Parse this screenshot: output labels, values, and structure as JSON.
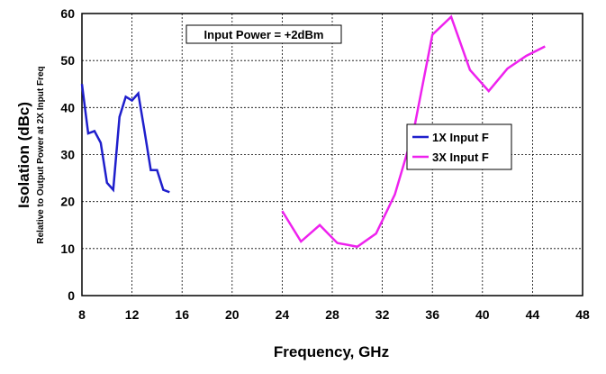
{
  "chart_data": {
    "type": "line",
    "x_label": "Frequency, GHz",
    "y_label": "Isolation (dBc)",
    "y_sublabel": "Relative to Output Power at 2X Input Freq",
    "annotation": "Input Power = +2dBm",
    "series": [
      {
        "name": "1X Input F",
        "color": "#1f1fcc",
        "x": [
          8,
          8.5,
          9,
          9.5,
          10,
          10.5,
          11,
          11.5,
          12,
          12.5,
          13,
          13.5,
          14,
          14.5,
          15
        ],
        "values": [
          45,
          34.5,
          35,
          32.5,
          24,
          22.5,
          38,
          42.3,
          41.5,
          43,
          35,
          26.7,
          26.7,
          22.5,
          22
        ]
      },
      {
        "name": "3X Input F",
        "color": "#ee22ee",
        "x": [
          24,
          25.5,
          27,
          28.4,
          30,
          31.5,
          33,
          34.5,
          36,
          37.5,
          39,
          40.5,
          42,
          43.5,
          45
        ],
        "values": [
          18,
          11.5,
          15,
          11.2,
          10.4,
          13.2,
          21.5,
          35,
          55.5,
          59.3,
          48,
          43.5,
          48.3,
          51,
          53
        ]
      }
    ],
    "xlim": [
      8,
      48
    ],
    "xticks": [
      8,
      12,
      16,
      20,
      24,
      28,
      32,
      36,
      40,
      44,
      48
    ],
    "ylim": [
      0,
      60
    ],
    "yticks": [
      0,
      10,
      20,
      30,
      40,
      50,
      60
    ],
    "grid": true,
    "legend_position": "right"
  }
}
